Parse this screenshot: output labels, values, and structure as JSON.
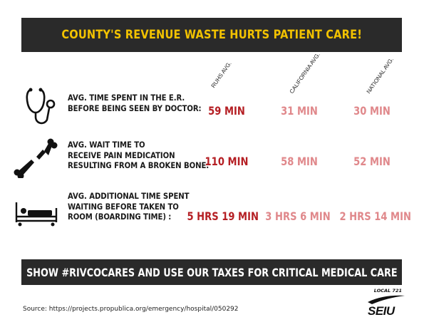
{
  "title": "COUNTY'S REVENUE WASTE  HURTS PATIENT CARE!",
  "columns": [
    "RUHS AVG.",
    "CALIFORNIA AVG.",
    "NATIONAL AVG."
  ],
  "rows": [
    {
      "icon": "stethoscope-icon",
      "label": [
        "AVG. TIME SPENT IN THE E.R.",
        "BEFORE BEING SEEN BY DOCTOR:"
      ],
      "values": [
        "59 MIN",
        "31 MIN",
        "30 MIN"
      ]
    },
    {
      "icon": "broken-bone-icon",
      "label": [
        "AVG. WAIT TIME TO",
        "RECEIVE PAIN MEDICATION",
        "RESULTING FROM A BROKEN BONE:"
      ],
      "values": [
        "110 MIN",
        "58 MIN",
        "52 MIN"
      ]
    },
    {
      "icon": "hospital-bed-icon",
      "label": [
        "AVG. ADDITIONAL TIME SPENT",
        "WAITING BEFORE TAKEN TO",
        "ROOM (BOARDING TIME) :"
      ],
      "values": [
        "5 HRS 19 MIN",
        "3 HRS 6 MIN",
        "2 HRS 14 MIN"
      ]
    }
  ],
  "footer_banner": "SHOW #RIVCOCARES AND USE OUR TAXES FOR CRITICAL MEDICAL CARE",
  "source": "Source:  https://projects.propublica.org/emergency/hospital/050292",
  "logo": {
    "local": "LOCAL 721",
    "name": "SEIU"
  },
  "colors": {
    "banner_bg": "#2a2a2a",
    "title": "#f2c200",
    "local_value": "#b51f24",
    "comparison_value": "#e0888b"
  }
}
